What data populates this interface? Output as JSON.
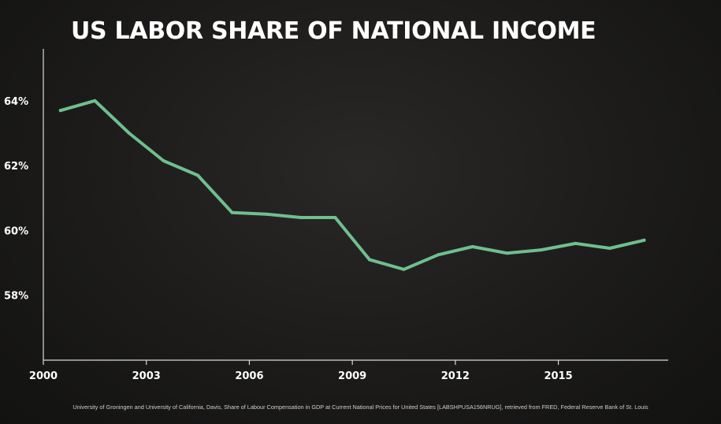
{
  "chart_data": {
    "type": "line",
    "title": "US LABOR SHARE OF NATIONAL INCOME",
    "xlabel": "",
    "ylabel": "",
    "x": [
      2000.5,
      2001.5,
      2002.5,
      2003.5,
      2004.5,
      2005.5,
      2006.5,
      2007.5,
      2008.5,
      2009.5,
      2010.5,
      2011.5,
      2012.5,
      2013.5,
      2014.5,
      2015.5,
      2016.5,
      2017.5
    ],
    "series": [
      {
        "name": "",
        "values": [
          63.7,
          64.0,
          63.0,
          62.15,
          61.7,
          60.55,
          60.5,
          60.4,
          60.4,
          59.1,
          58.8,
          59.25,
          59.5,
          59.3,
          59.4,
          59.6,
          59.45,
          59.7
        ],
        "color": "#6fbf8f"
      }
    ],
    "xticks": [
      2000,
      2003,
      2006,
      2009,
      2012,
      2015
    ],
    "xtick_labels": [
      "2000",
      "2003",
      "2006",
      "2009",
      "2012",
      "2015"
    ],
    "yticks": [
      58,
      60,
      62,
      64
    ],
    "ytick_labels": [
      "58%",
      "60%",
      "62%",
      "64%"
    ],
    "xlim": [
      2000,
      2018.2
    ],
    "ylim": [
      56.0,
      65.6
    ],
    "grid": false,
    "legend": "none",
    "source": "University of Groningen and University of California, Davis, Share of Labour Compensation in GDP at Current National Prices for United States [LABSHPUSA156NRUG], retrieved from FRED, Federal Reserve Bank of St. Louis"
  }
}
